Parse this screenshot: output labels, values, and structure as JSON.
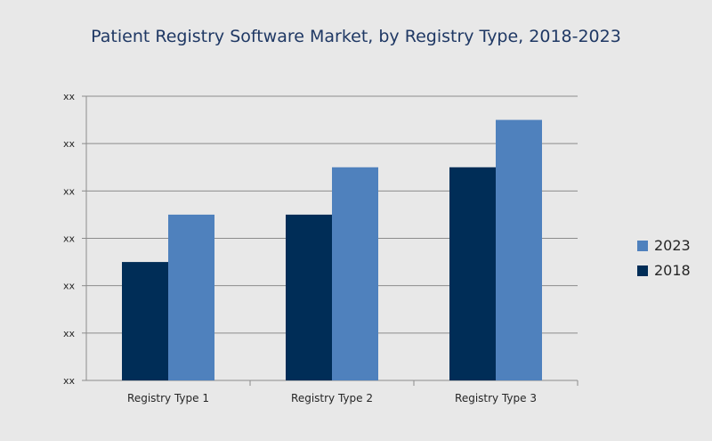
{
  "chart_data": {
    "type": "bar",
    "title": "Patient Registry Software Market, by Registry Type, 2018-2023",
    "categories": [
      "Registry Type 1",
      "Registry Type 2",
      "Registry Type 3"
    ],
    "series": [
      {
        "name": "2018",
        "values": [
          2.5,
          3.5,
          4.5
        ],
        "color": "#002d57"
      },
      {
        "name": "2023",
        "values": [
          3.5,
          4.5,
          5.5
        ],
        "color": "#4f81bd"
      }
    ],
    "y_tick_labels": [
      "xx",
      "xx",
      "xx",
      "xx",
      "xx",
      "xx",
      "xx"
    ],
    "ylim": [
      0,
      6
    ],
    "grid": true,
    "legend_position": "right",
    "legend_order": [
      "2023",
      "2018"
    ],
    "xlabel": "",
    "ylabel": ""
  }
}
